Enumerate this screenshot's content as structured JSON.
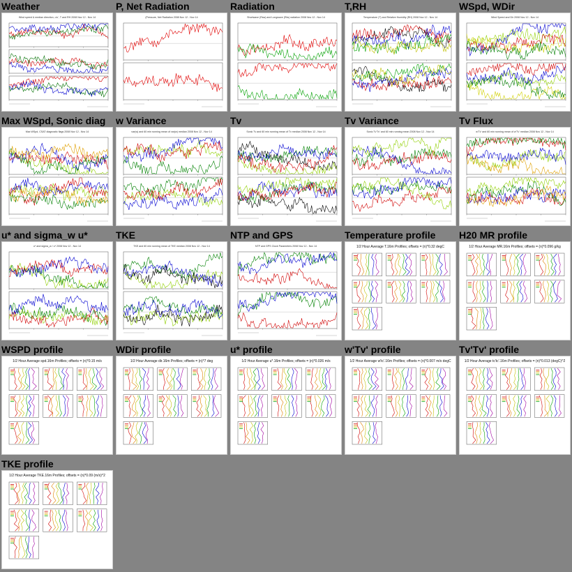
{
  "page": {
    "background": "#848484"
  },
  "tiles": [
    {
      "title": "Weather",
      "kind": "ts",
      "caption": "Wind speed & median direction, u'u', T and RH  2008 Nov 12 - Nov 14",
      "panels": 3,
      "colors": [
        "#d00000",
        "#007000",
        "#0000d0"
      ]
    },
    {
      "title": "P, Net Radiation",
      "kind": "ts",
      "caption": "(Pressure, Net Radiation  2008 Nov 12 - Nov 14",
      "panels": 2,
      "colors": [
        "#e00000"
      ]
    },
    {
      "title": "Radiation",
      "kind": "ts",
      "caption": "Shortwave (Rsw) and Longwave (Rlw) radiation  2008 Nov 12 - Nov 14",
      "panels": 2,
      "colors": [
        "#e00000",
        "#00a000"
      ]
    },
    {
      "title": "T,RH",
      "kind": "ts",
      "caption": "Temperature (T) and Relative Humidity (RH)  2008 Nov 12 - Nov 14",
      "panels": 2,
      "colors": [
        "#000000",
        "#d00000",
        "#00a000",
        "#0000d0",
        "#c0c000"
      ]
    },
    {
      "title": "WSpd, WDir",
      "kind": "ts",
      "caption": "Wind Speed and Dir  2008 Nov 12 - Nov 14",
      "panels": 2,
      "colors": [
        "#90d000",
        "#d0d000",
        "#0000d0",
        "#d00000",
        "#008000"
      ]
    },
    {
      "title": "Max WSpd, Sonic diag",
      "kind": "ts",
      "caption": "Max WSpd, CSAT diagnostic flags  2008 Nov 12 - Nov 14",
      "panels": 2,
      "colors": [
        "#90d000",
        "#d00000",
        "#0000d0",
        "#008000",
        "#e0a000"
      ]
    },
    {
      "title": "w Variance",
      "kind": "ts",
      "caption": "var(w) and 60 min running mean of var(w) median  2008 Nov 12 - Nov 14",
      "panels": 2,
      "colors": [
        "#90d000",
        "#008000",
        "#0000d0",
        "#d00000"
      ]
    },
    {
      "title": "Tv",
      "kind": "ts",
      "caption": "Sonic Tv and 60 min running mean of Tv median  2008 Nov 12 - Nov 14",
      "panels": 2,
      "colors": [
        "#000000",
        "#008000",
        "#0000d0",
        "#90d000",
        "#d00000"
      ]
    },
    {
      "title": "Tv Variance",
      "kind": "ts",
      "caption": "Sonic Tv'Tv' and 60 min running mean  2008 Nov 12 - Nov 14",
      "panels": 2,
      "colors": [
        "#008000",
        "#d00000",
        "#0000d0",
        "#90d000"
      ]
    },
    {
      "title": "Tv Flux",
      "kind": "ts",
      "caption": "w'Tv' and 60 min running mean of w'Tv' median  2008 Nov 12 - Nov 14",
      "panels": 2,
      "colors": [
        "#90d000",
        "#d00000",
        "#008000",
        "#0000d0",
        "#e0a000"
      ]
    },
    {
      "title": "u* and sigma_w u*",
      "kind": "ts",
      "caption": "u* and sigma_w / u*  2008 Nov 12 - Nov 14",
      "panels": 2,
      "colors": [
        "#90d000",
        "#008000",
        "#d00000",
        "#0000d0"
      ]
    },
    {
      "title": "TKE",
      "kind": "ts",
      "caption": "TKE and 60 min running mean of TKE median  2008 Nov 12 - Nov 14",
      "panels": 2,
      "colors": [
        "#90d000",
        "#008000",
        "#0000d0",
        "#000000"
      ]
    },
    {
      "title": "NTP and GPS",
      "kind": "ts",
      "caption": "NTP and GPS Clock Parameters  2008 Nov 12 - Nov 14",
      "panels": 2,
      "colors": [
        "#d00000",
        "#008000",
        "#0000d0"
      ]
    },
    {
      "title": "Temperature profile",
      "kind": "profile",
      "caption": "1/2 Hour Average T.16m Profiles; offsets = (n)*0.32 degC",
      "colors": [
        "#d00000",
        "#e08000",
        "#c0c000",
        "#00a000",
        "#0000d0",
        "#a000a0"
      ]
    },
    {
      "title": "H20 MR profile",
      "kind": "profile",
      "caption": "1/2 Hour Average MR.16m Profiles; offsets = (n)*0.096 g/kg",
      "colors": [
        "#d00000",
        "#e08000",
        "#c0c000",
        "#00a000",
        "#0000d0",
        "#a000a0"
      ]
    },
    {
      "title": "WSPD profile",
      "kind": "profile",
      "caption": "1/2 Hour Average spd.16m Profiles; offsets = (n)*0.15 m/s",
      "colors": [
        "#d00000",
        "#e08000",
        "#c0c000",
        "#00a000",
        "#0000d0",
        "#a000a0"
      ]
    },
    {
      "title": "WDir profile",
      "kind": "profile",
      "caption": "1/2 Hour Average dir.16m Profiles; offsets = (n)*7 deg",
      "colors": [
        "#d00000",
        "#e08000",
        "#c0c000",
        "#00a000",
        "#0000d0",
        "#a000a0"
      ]
    },
    {
      "title": "u* profile",
      "kind": "profile",
      "caption": "1/2 Hour Average u*.16m Profiles; offsets = (n)*0.026 m/s",
      "colors": [
        "#d00000",
        "#e08000",
        "#c0c000",
        "#00a000",
        "#0000d0",
        "#a000a0"
      ]
    },
    {
      "title": "w'Tv' profile",
      "kind": "profile",
      "caption": "1/2 Hour Average w'tc'.16m Profiles; offsets = (n)*0.007 m/s degC",
      "colors": [
        "#d00000",
        "#e08000",
        "#c0c000",
        "#00a000",
        "#0000d0",
        "#a000a0"
      ]
    },
    {
      "title": "Tv'Tv' profile",
      "kind": "profile",
      "caption": "1/2 Hour Average tc'tc'.16m Profiles; offsets = (n)*0.013 (degC)^2",
      "colors": [
        "#d00000",
        "#e08000",
        "#c0c000",
        "#00a000",
        "#0000d0",
        "#a000a0"
      ]
    },
    {
      "title": "TKE profile",
      "kind": "profile",
      "caption": "1/2 Hour Average TKE.16m Profiles; offsets = (n)*0.09 (m/s)^2",
      "colors": [
        "#d00000",
        "#e08000",
        "#c0c000",
        "#00a000",
        "#0000d0",
        "#a000a0"
      ]
    }
  ]
}
